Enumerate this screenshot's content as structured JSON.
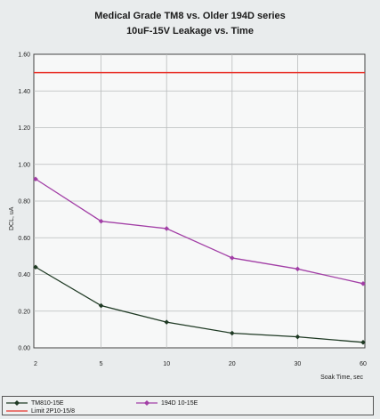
{
  "chart_data": {
    "type": "line",
    "title": "Medical Grade TM8 vs. Older 194D series",
    "subtitle": "10uF-15V    Leakage vs. Time",
    "xlabel": "Soak Time, sec",
    "ylabel": "DCL, uA",
    "categories": [
      "2",
      "5",
      "10",
      "20",
      "30",
      "60"
    ],
    "ylim": [
      0,
      1.6
    ],
    "yticks": [
      "0.00",
      "0.20",
      "0.40",
      "0.60",
      "0.80",
      "1.00",
      "1.20",
      "1.40",
      "1.60"
    ],
    "grid": true,
    "legend_position": "bottom",
    "series": [
      {
        "name": "TM810-15E",
        "values": [
          0.44,
          0.23,
          0.14,
          0.08,
          0.06,
          0.03
        ],
        "color": "#1f3a24",
        "marker": "diamond"
      },
      {
        "name": "194D 10-15E",
        "values": [
          0.92,
          0.69,
          0.65,
          0.49,
          0.43,
          0.35
        ],
        "color": "#a23fa6",
        "marker": "diamond"
      },
      {
        "name": "Limit 2P10-15/8",
        "values": [
          1.5,
          1.5,
          1.5,
          1.5,
          1.5,
          1.5
        ],
        "color": "#e8332b",
        "marker": "none"
      }
    ]
  }
}
